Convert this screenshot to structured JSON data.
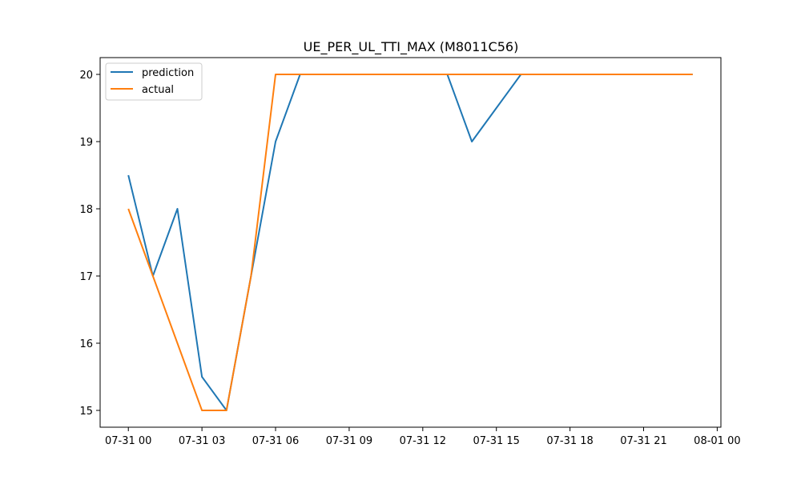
{
  "chart_data": {
    "type": "line",
    "title": "UE_PER_UL_TTI_MAX (M8011C56)",
    "xlabel": "",
    "ylabel": "",
    "x_unit": "hour",
    "x_ticks": [
      {
        "hour": 0,
        "label": "07-31 00"
      },
      {
        "hour": 3,
        "label": "07-31 03"
      },
      {
        "hour": 6,
        "label": "07-31 06"
      },
      {
        "hour": 9,
        "label": "07-31 09"
      },
      {
        "hour": 12,
        "label": "07-31 12"
      },
      {
        "hour": 15,
        "label": "07-31 15"
      },
      {
        "hour": 18,
        "label": "07-31 18"
      },
      {
        "hour": 21,
        "label": "07-31 21"
      },
      {
        "hour": 24,
        "label": "08-01 00"
      }
    ],
    "y_ticks": [
      15,
      16,
      17,
      18,
      19,
      20
    ],
    "xlim": [
      -1.15,
      24.15
    ],
    "ylim": [
      14.75,
      20.25
    ],
    "legend": "upper left",
    "grid": false,
    "series": [
      {
        "name": "prediction",
        "color": "#1f77b4",
        "x": [
          0,
          1,
          2,
          3,
          4,
          5,
          6,
          7,
          8,
          9,
          10,
          11,
          12,
          13,
          14,
          15,
          16,
          17,
          18,
          19,
          20,
          21,
          22,
          23
        ],
        "values": [
          18.5,
          17,
          18,
          15.5,
          15,
          17,
          19,
          20,
          20,
          20,
          20,
          20,
          20,
          20,
          19,
          19.5,
          20,
          20,
          20,
          20,
          20,
          20,
          20,
          20
        ]
      },
      {
        "name": "actual",
        "color": "#ff7f0e",
        "x": [
          0,
          1,
          2,
          3,
          4,
          5,
          6,
          7,
          8,
          9,
          10,
          11,
          12,
          13,
          14,
          15,
          16,
          17,
          18,
          19,
          20,
          21,
          22,
          23
        ],
        "values": [
          18,
          17,
          16,
          15,
          15,
          17,
          20,
          20,
          20,
          20,
          20,
          20,
          20,
          20,
          20,
          20,
          20,
          20,
          20,
          20,
          20,
          20,
          20,
          20
        ]
      }
    ]
  }
}
